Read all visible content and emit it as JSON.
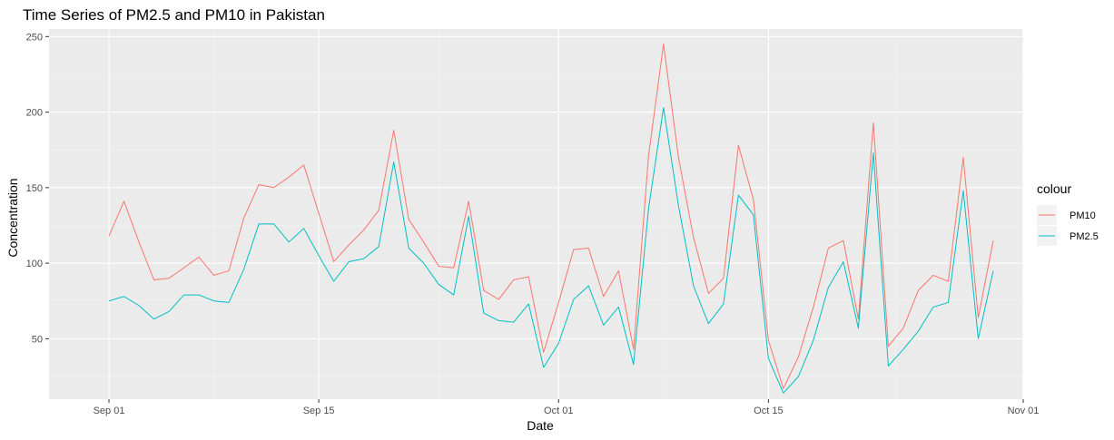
{
  "chart_data": {
    "type": "line",
    "title": "Time Series of PM2.5 and PM10 in Pakistan",
    "xlabel": "Date",
    "ylabel": "Concentration",
    "x_axis": {
      "start": "2024-08-28",
      "end": "2024-11-01",
      "ticks": [
        {
          "date": "2024-09-01",
          "label": "Sep 01"
        },
        {
          "date": "2024-09-15",
          "label": "Sep 15"
        },
        {
          "date": "2024-10-01",
          "label": "Oct 01"
        },
        {
          "date": "2024-10-15",
          "label": "Oct 15"
        },
        {
          "date": "2024-11-01",
          "label": "Nov 01"
        }
      ]
    },
    "y_axis": {
      "ylim": [
        10,
        255
      ],
      "ticks": [
        50,
        100,
        150,
        200,
        250
      ]
    },
    "grid": true,
    "legend": {
      "title": "colour",
      "position": "right"
    },
    "x": [
      "2024-09-01",
      "2024-09-02",
      "2024-09-03",
      "2024-09-04",
      "2024-09-05",
      "2024-09-06",
      "2024-09-07",
      "2024-09-08",
      "2024-09-09",
      "2024-09-10",
      "2024-09-11",
      "2024-09-12",
      "2024-09-13",
      "2024-09-14",
      "2024-09-15",
      "2024-09-16",
      "2024-09-17",
      "2024-09-18",
      "2024-09-19",
      "2024-09-20",
      "2024-09-21",
      "2024-09-22",
      "2024-09-23",
      "2024-09-24",
      "2024-09-25",
      "2024-09-26",
      "2024-09-27",
      "2024-09-28",
      "2024-09-29",
      "2024-09-30",
      "2024-10-01",
      "2024-10-02",
      "2024-10-03",
      "2024-10-04",
      "2024-10-05",
      "2024-10-06",
      "2024-10-07",
      "2024-10-08",
      "2024-10-09",
      "2024-10-10",
      "2024-10-11",
      "2024-10-12",
      "2024-10-13",
      "2024-10-14",
      "2024-10-15",
      "2024-10-16",
      "2024-10-17",
      "2024-10-18",
      "2024-10-19",
      "2024-10-20",
      "2024-10-21",
      "2024-10-22",
      "2024-10-23",
      "2024-10-24",
      "2024-10-25",
      "2024-10-26",
      "2024-10-27",
      "2024-10-28",
      "2024-10-29",
      "2024-10-30"
    ],
    "series": [
      {
        "name": "PM10",
        "color": "#F8766D",
        "values": [
          118,
          141,
          114,
          89,
          90,
          97,
          104,
          92,
          95,
          130,
          152,
          150,
          157,
          165,
          133,
          101,
          112,
          122,
          135,
          188,
          129,
          114,
          98,
          97,
          141,
          82,
          76,
          89,
          91,
          41,
          74,
          109,
          110,
          78,
          95,
          43,
          171,
          245,
          170,
          117,
          80,
          90,
          178,
          142,
          49,
          17,
          38,
          71,
          110,
          115,
          63,
          193,
          45,
          57,
          82,
          92,
          88,
          170,
          64,
          115
        ]
      },
      {
        "name": "PM2.5",
        "color": "#00BFC4",
        "values": [
          75,
          78,
          72,
          63,
          68,
          79,
          79,
          75,
          74,
          96,
          126,
          126,
          114,
          123,
          105,
          88,
          101,
          103,
          111,
          167,
          110,
          100,
          86,
          79,
          131,
          67,
          62,
          61,
          73,
          31,
          47,
          76,
          85,
          59,
          71,
          33,
          136,
          203,
          138,
          85,
          60,
          73,
          145,
          132,
          37,
          14,
          25,
          49,
          84,
          101,
          57,
          173,
          32,
          43,
          55,
          71,
          74,
          148,
          50,
          95
        ]
      }
    ]
  }
}
